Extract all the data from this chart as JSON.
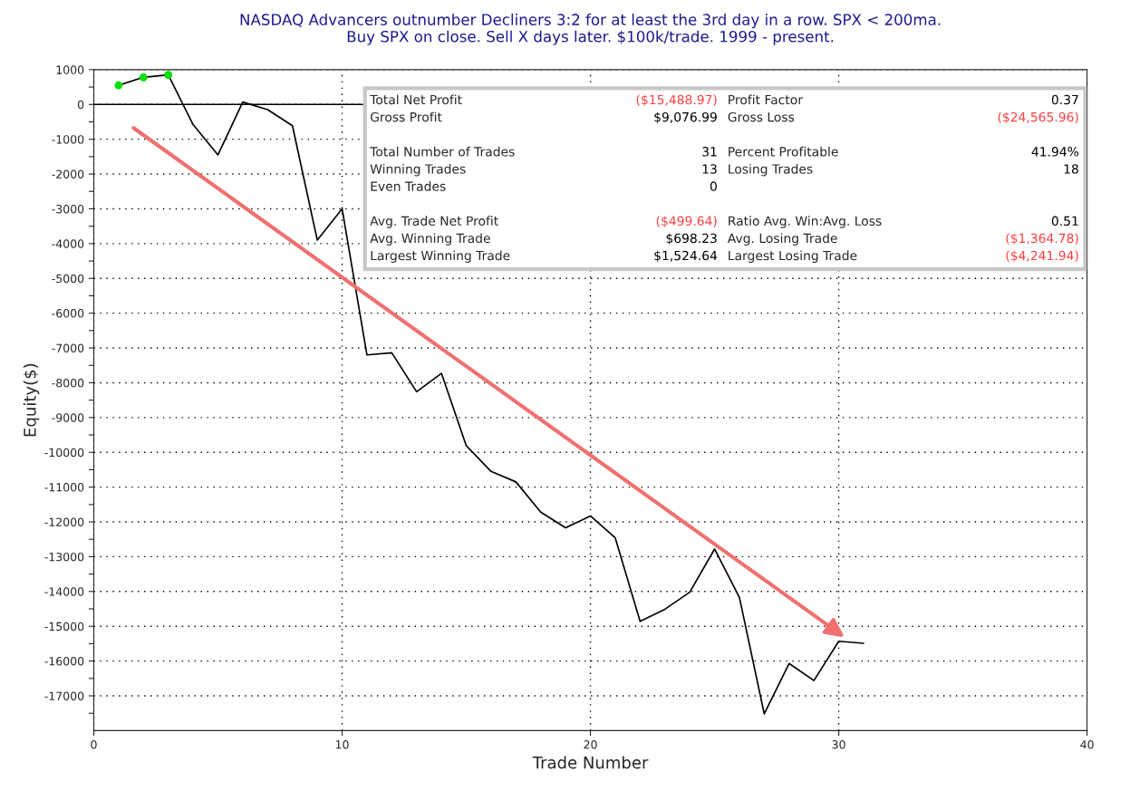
{
  "chart_data": {
    "type": "line",
    "title": "NASDAQ Advancers outnumber Decliners 3:2 for at least the 3rd day in a row. SPX < 200ma.\nBuy SPX on close. Sell X days later. $100k/trade. 1999 - present.",
    "xlabel": "Trade Number",
    "ylabel": "Equity($)",
    "series": [
      {
        "color": "#000000",
        "x": [
          1,
          2,
          3,
          4,
          5,
          6,
          7,
          8,
          9,
          10,
          11,
          12,
          13,
          14,
          15,
          16,
          17,
          18,
          19,
          20,
          21,
          22,
          23,
          24,
          25,
          26,
          27,
          28,
          29,
          30,
          31
        ],
        "values": [
          550,
          780,
          850,
          -580,
          -1450,
          70,
          -150,
          -610,
          -3900,
          -3000,
          -7200,
          -7140,
          -8260,
          -7730,
          -9810,
          -10550,
          -10850,
          -11720,
          -12170,
          -11830,
          -12460,
          -14860,
          -14510,
          -14020,
          -12780,
          -14170,
          -17520,
          -16070,
          -16560,
          -15430,
          -15490
        ]
      },
      {
        "type": "scatter",
        "marker": "circle",
        "color": "#00e000",
        "x": [
          1,
          2,
          3
        ],
        "values": [
          550,
          780,
          850
        ]
      }
    ],
    "xlim": [
      0,
      40
    ],
    "xticks": [
      0,
      10,
      20,
      30,
      40
    ],
    "ylim": [
      -18000,
      1000
    ],
    "yticks": [
      1000,
      {
        "value": 500,
        "label": null
      },
      0,
      {
        "value": -500,
        "label": null
      },
      -1000,
      {
        "value": -1500,
        "label": null
      },
      -2000,
      {
        "value": -2500,
        "label": null
      },
      -3000,
      {
        "value": -3500,
        "label": null
      },
      -4000,
      {
        "value": -4500,
        "label": null
      },
      -5000,
      {
        "value": -5500,
        "label": null
      },
      -6000,
      {
        "value": -6500,
        "label": null
      },
      -7000,
      {
        "value": -7500,
        "label": null
      },
      -8000,
      {
        "value": -8500,
        "label": null
      },
      -9000,
      {
        "value": -9500,
        "label": null
      },
      -10000,
      {
        "value": -10500,
        "label": null
      },
      -11000,
      {
        "value": -11500,
        "label": null
      },
      -12000,
      {
        "value": -12500,
        "label": null
      },
      -13000,
      {
        "value": -13500,
        "label": null
      },
      -14000,
      {
        "value": -14500,
        "label": null
      },
      -15000,
      {
        "value": -15500,
        "label": null
      },
      -16000,
      {
        "value": -16500,
        "label": null
      },
      -17000,
      {
        "value": -17500,
        "label": null
      }
    ],
    "grid": true,
    "line_style": "solid",
    "ref_lines": [
      {
        "axis": "y",
        "value": 0,
        "color": "#000000",
        "line_style": "solid"
      }
    ],
    "annotations": [
      "Total Net Profit",
      "($15,488.97)",
      "Profit Factor",
      "0.37",
      "Gross Profit",
      "$9,076.99",
      "Gross Loss",
      "($24,565.96)",
      "Total Number of Trades",
      "31",
      "Percent Profitable",
      "41.94%",
      "Winning Trades",
      "13",
      "Losing Trades",
      "18",
      "Even Trades",
      "0",
      "Avg. Trade Net Profit",
      "($499.64)",
      "Ratio Avg. Win:Avg. Loss",
      "0.51",
      "Avg. Winning Trade",
      "$698.23",
      "Avg. Losing Trade",
      "($1,364.78)",
      "Largest Winning Trade",
      "$1,524.64",
      "Largest Losing Trade",
      "($4,241.94)"
    ]
  }
}
